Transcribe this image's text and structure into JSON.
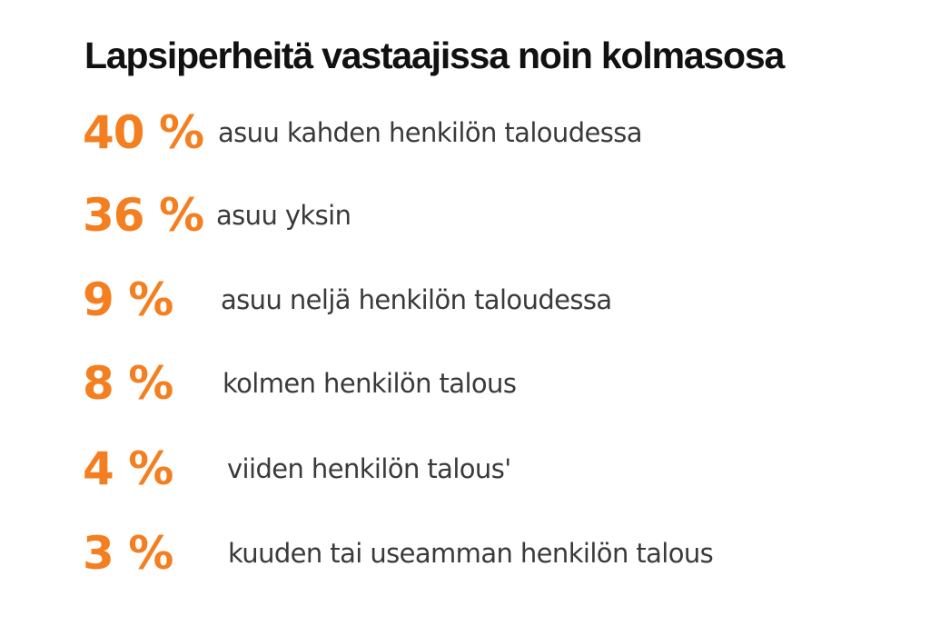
{
  "title": "Lapsiperheitä vastaajissa noin kolmasosa",
  "accent_color": "#f47f20",
  "chart_data": {
    "type": "table",
    "title": "Lapsiperheitä vastaajissa noin kolmasosa",
    "rows": [
      {
        "value": 40,
        "value_label": "40 %",
        "label": "asuu kahden henkilön taloudessa"
      },
      {
        "value": 36,
        "value_label": "36 %",
        "label": "asuu yksin"
      },
      {
        "value": 9,
        "value_label": "9 %",
        "label": "asuu neljä henkilön taloudessa"
      },
      {
        "value": 8,
        "value_label": "8 %",
        "label": "kolmen henkilön talous"
      },
      {
        "value": 4,
        "value_label": "4 %",
        "label": "viiden henkilön talous'"
      },
      {
        "value": 3,
        "value_label": "3 %",
        "label": "kuuden tai useamman henkilön talous"
      }
    ]
  }
}
